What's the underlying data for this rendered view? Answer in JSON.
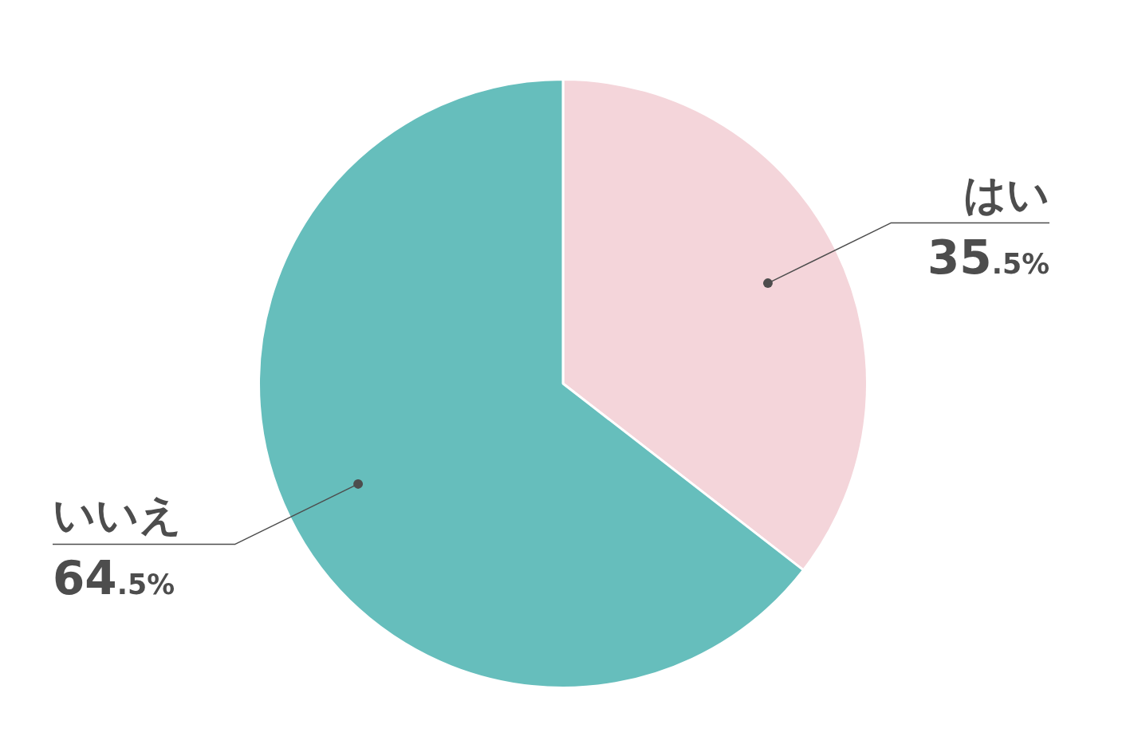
{
  "chart_data": {
    "type": "pie",
    "categories": [
      "はい",
      "いいえ"
    ],
    "values": [
      35.5,
      64.5
    ],
    "colors": [
      "#f4d5da",
      "#66bebc"
    ],
    "value_labels": [
      "35.5%",
      "64.5%"
    ]
  }
}
